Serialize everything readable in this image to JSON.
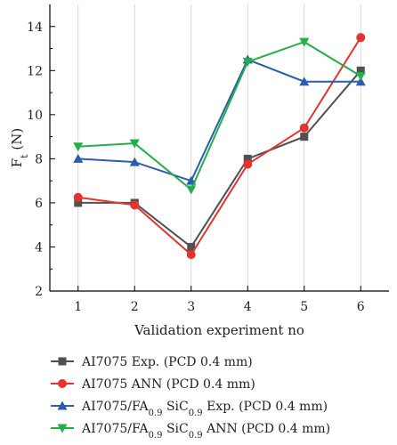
{
  "chart_data": {
    "type": "line",
    "xlabel": "Validation experiment no",
    "ylabel": {
      "main": "F",
      "sub": "t",
      "unit": " (N)"
    },
    "x": [
      1,
      2,
      3,
      4,
      5,
      6
    ],
    "xlim": [
      0.5,
      6.5
    ],
    "ylim": [
      2,
      15
    ],
    "xticks": [
      1,
      2,
      3,
      4,
      5,
      6
    ],
    "yticks": [
      2,
      4,
      6,
      8,
      10,
      12,
      14
    ],
    "grid": "vertical",
    "legend_position": "bottom",
    "series": [
      {
        "name": "AI7075 Exp. (PCD 0.4 mm)",
        "legend_parts": [
          {
            "t": "AI7075 Exp. (PCD 0.4 mm)"
          }
        ],
        "color": "#505050",
        "marker": "square",
        "values": [
          6.0,
          6.0,
          4.0,
          8.0,
          9.0,
          12.0
        ]
      },
      {
        "name": "AI7075 ANN (PCD 0.4 mm)",
        "legend_parts": [
          {
            "t": "AI7075 ANN (PCD 0.4 mm)"
          }
        ],
        "color": "#e8322e",
        "marker": "circle",
        "values": [
          6.25,
          5.9,
          3.65,
          7.75,
          9.4,
          13.5
        ]
      },
      {
        "name": "AI7075/FA0.9 SiC0.9 Exp. (PCD 0.4 mm)",
        "legend_parts": [
          {
            "t": "AI7075/FA"
          },
          {
            "t": "0.9",
            "sub": true
          },
          {
            "t": " SiC"
          },
          {
            "t": "0.9",
            "sub": true
          },
          {
            "t": " Exp. (PCD 0.4 mm)"
          }
        ],
        "color": "#2a5db0",
        "marker": "triangle-up",
        "values": [
          8.0,
          7.85,
          7.0,
          12.5,
          11.5,
          11.5
        ]
      },
      {
        "name": "AI7075/FA0.9 SiC0.9 ANN (PCD 0.4 mm)",
        "legend_parts": [
          {
            "t": "AI7075/FA"
          },
          {
            "t": "0.9",
            "sub": true
          },
          {
            "t": " SiC"
          },
          {
            "t": "0.9",
            "sub": true
          },
          {
            "t": " ANN (PCD 0.4 mm)"
          }
        ],
        "color": "#22b04a",
        "marker": "triangle-down",
        "values": [
          8.55,
          8.7,
          6.6,
          12.4,
          13.3,
          11.75
        ]
      }
    ]
  }
}
